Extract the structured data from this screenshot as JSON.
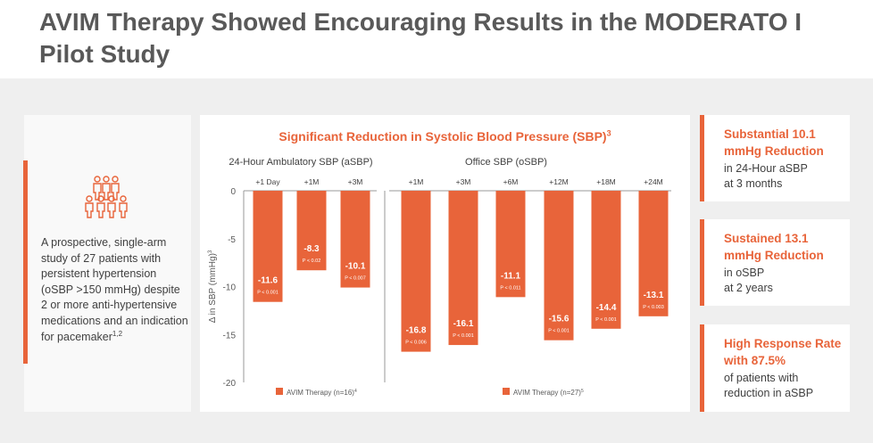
{
  "title": "AVIM Therapy Showed Encouraging Results in the MODERATO I Pilot Study",
  "left_panel": {
    "icon": "people-group-icon",
    "description": "A prospective, single-arm study of 27 patients with persistent hypertension (oSBP >150 mmHg) despite 2 or more anti-hypertensive medications and an indication for pacemaker",
    "description_sup": "1,2"
  },
  "chart_data": {
    "type": "bar",
    "title": "Significant Reduction in Systolic Blood Pressure (SBP)",
    "title_sup": "3",
    "ylabel": "Δ in SBP (mmHg)",
    "ylabel_sup": "3",
    "ylim": [
      -20,
      0
    ],
    "yticks": [
      "0",
      "-5",
      "-10",
      "-15",
      "-20"
    ],
    "colors": {
      "bar": "#e8643a",
      "title": "#e8643a",
      "axis": "#9a9a9a"
    },
    "panels": [
      {
        "header": "24-Hour Ambulatory SBP (aSBP)",
        "categories": [
          "+1 Day",
          "+1M",
          "+3M"
        ],
        "values": [
          -11.6,
          -8.3,
          -10.1
        ],
        "labels": [
          "-11.6",
          "-8.3",
          "-10.1"
        ],
        "p_values": [
          "P < 0.001",
          "P < 0.02",
          "P < 0.007"
        ],
        "legend": "AVIM Therapy (n=16)",
        "legend_sup": "4"
      },
      {
        "header": "Office SBP (oSBP)",
        "categories": [
          "+1M",
          "+3M",
          "+6M",
          "+12M",
          "+18M",
          "+24M"
        ],
        "values": [
          -16.8,
          -16.1,
          -11.1,
          -15.6,
          -14.4,
          -13.1
        ],
        "labels": [
          "-16.8",
          "-16.1",
          "-11.1",
          "-15.6",
          "-14.4",
          "-13.1"
        ],
        "p_values": [
          "P < 0.006",
          "P < 0.001",
          "P < 0.011",
          "P < 0.001",
          "P < 0.001",
          "P < 0.003"
        ],
        "legend": "AVIM Therapy (n=27)",
        "legend_sup": "5"
      }
    ]
  },
  "stats": [
    {
      "head": "Substantial 10.1 mmHg Reduction",
      "body": [
        "in 24-Hour aSBP",
        "at 3 months"
      ]
    },
    {
      "head": "Sustained 13.1 mmHg Reduction",
      "body": [
        "in oSBP",
        "at 2 years"
      ]
    },
    {
      "head": "High Response Rate with 87.5%",
      "body": [
        "of patients with",
        "reduction in aSBP"
      ]
    }
  ]
}
